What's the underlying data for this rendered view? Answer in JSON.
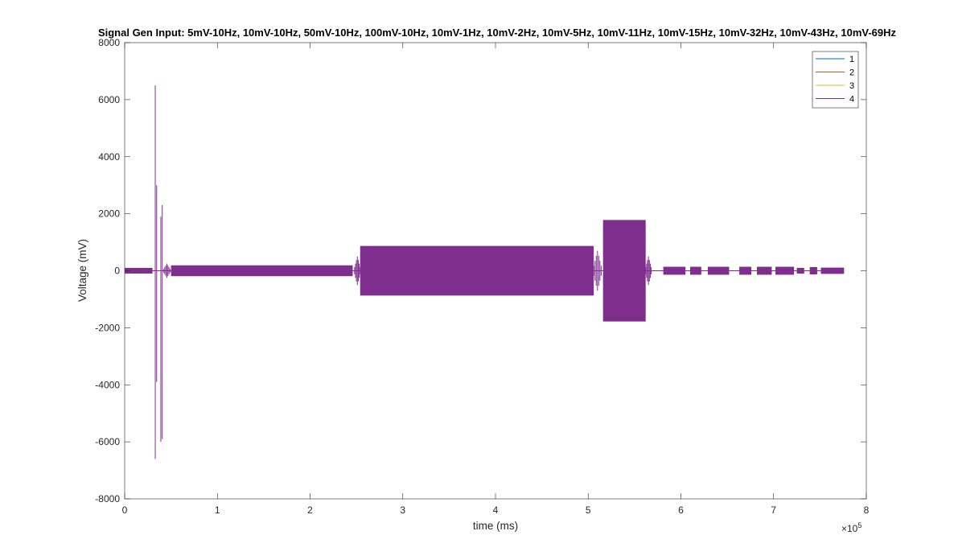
{
  "chart_data": {
    "type": "line",
    "title": "Signal Gen Input: 5mV-10Hz, 10mV-10Hz, 50mV-10Hz, 100mV-10Hz, 10mV-1Hz, 10mV-2Hz, 10mV-5Hz, 10mV-11Hz, 10mV-15Hz, 10mV-32Hz, 10mV-43Hz, 10mV-69Hz",
    "xlabel": "time (ms)",
    "ylabel": "Voltage (mV)",
    "x_exponent_label": "×10",
    "x_exponent": "5",
    "xlim": [
      0,
      800000
    ],
    "ylim": [
      -8000,
      8000
    ],
    "xticks": [
      0,
      100000,
      200000,
      300000,
      400000,
      500000,
      600000,
      700000,
      800000
    ],
    "xtick_labels": [
      "0",
      "1",
      "2",
      "3",
      "4",
      "5",
      "6",
      "7",
      "8"
    ],
    "yticks": [
      -8000,
      -6000,
      -4000,
      -2000,
      0,
      2000,
      4000,
      6000,
      8000
    ],
    "ytick_labels": [
      "-8000",
      "-6000",
      "-4000",
      "-2000",
      "0",
      "2000",
      "4000",
      "6000",
      "8000"
    ],
    "grid": false,
    "legend_position": "top-right",
    "series": [
      {
        "name": "1",
        "color": "#0072BD"
      },
      {
        "name": "2",
        "color": "#D95319"
      },
      {
        "name": "3",
        "color": "#EDB120"
      },
      {
        "name": "4",
        "color": "#7E2F8E",
        "oscillation_envelopes": [
          {
            "x_start": 0,
            "x_end": 30000,
            "amplitude": 100
          },
          {
            "x_start": 50000,
            "x_end": 246000,
            "amplitude": 190
          },
          {
            "x_start": 254000,
            "x_end": 506000,
            "amplitude": 870
          },
          {
            "x_start": 516000,
            "x_end": 562000,
            "amplitude": 1780
          },
          {
            "x_start": 581000,
            "x_end": 605000,
            "amplitude": 140
          },
          {
            "x_start": 610000,
            "x_end": 622000,
            "amplitude": 140
          },
          {
            "x_start": 629000,
            "x_end": 652000,
            "amplitude": 140
          },
          {
            "x_start": 663000,
            "x_end": 676000,
            "amplitude": 140
          },
          {
            "x_start": 682000,
            "x_end": 698000,
            "amplitude": 140
          },
          {
            "x_start": 702000,
            "x_end": 722000,
            "amplitude": 140
          },
          {
            "x_start": 725000,
            "x_end": 733000,
            "amplitude": 100
          },
          {
            "x_start": 739000,
            "x_end": 747000,
            "amplitude": 130
          },
          {
            "x_start": 751000,
            "x_end": 776000,
            "amplitude": 110
          }
        ],
        "spikes": [
          {
            "x": 33000,
            "min": -6600,
            "max": 6500
          },
          {
            "x": 34500,
            "min": -3900,
            "max": 3000
          },
          {
            "x": 39000,
            "min": -6000,
            "max": 1900
          },
          {
            "x": 40500,
            "min": -5900,
            "max": 2300
          }
        ],
        "transients": [
          {
            "x_start": 42000,
            "x_end": 49000,
            "amplitude": 250
          },
          {
            "x_start": 248000,
            "x_end": 254000,
            "amplitude": 500
          },
          {
            "x_start": 506000,
            "x_end": 514000,
            "amplitude": 700
          },
          {
            "x_start": 562000,
            "x_end": 568000,
            "amplitude": 500
          }
        ]
      }
    ]
  }
}
